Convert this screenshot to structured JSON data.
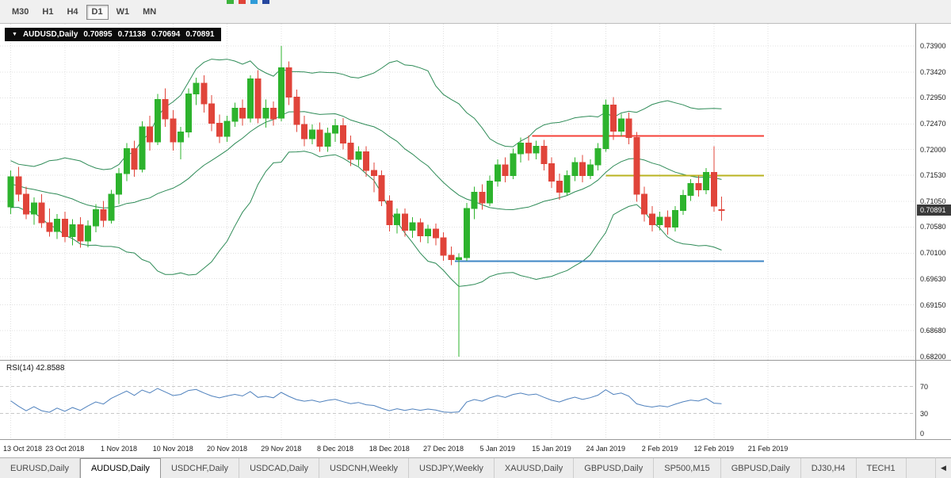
{
  "icons": {
    "collapse": "▼",
    "tabs_scroll_left": "◀"
  },
  "toolbar": {
    "timeframes": [
      {
        "label": "M30",
        "active": false
      },
      {
        "label": "H1",
        "active": false
      },
      {
        "label": "H4",
        "active": false
      },
      {
        "label": "D1",
        "active": true
      },
      {
        "label": "W1",
        "active": false
      },
      {
        "label": "MN",
        "active": false
      }
    ],
    "clipped_icon_colors": [
      "#3cb33c",
      "#e04438",
      "#2f9bd8",
      "#26479e"
    ]
  },
  "chart": {
    "title": {
      "symbol": "AUDUSD,Daily",
      "open": "0.70895",
      "high": "0.71138",
      "low": "0.70694",
      "close": "0.70891"
    },
    "current_price": "0.70891",
    "price_axis_labels": [
      "0.73900",
      "0.73420",
      "0.72950",
      "0.72470",
      "0.72000",
      "0.71530",
      "0.71050",
      "0.70580",
      "0.70100",
      "0.69630",
      "0.69150",
      "0.68680",
      "0.68200"
    ],
    "colors": {
      "up": "#2db32d",
      "down": "#e0443a",
      "band": "#2e8b57",
      "grid": "#e0e0e0",
      "rsi_line": "#4f81bd",
      "rsi_level": "#c8c8c8",
      "badge_bg": "#3a3a3a"
    },
    "hlines": [
      {
        "id": "resistance-line",
        "color": "#f54238",
        "price": 0.7225,
        "from_bar": 67.5,
        "to_bar": 97.5
      },
      {
        "id": "mid-level-line",
        "color": "#b9b320",
        "price": 0.7152,
        "from_bar": 77.0,
        "to_bar": 97.5
      },
      {
        "id": "support-line",
        "color": "#3e86c4",
        "price": 0.6995,
        "from_bar": 57.5,
        "to_bar": 97.5
      }
    ]
  },
  "rsi": {
    "label": "RSI(14) 42.8588",
    "period": 14,
    "current": 42.8588,
    "levels": [
      70,
      30
    ],
    "axis_labels": [
      "70",
      "30",
      "0"
    ]
  },
  "date_axis": [
    "13 Oct 2018",
    "23 Oct 2018",
    "1 Nov 2018",
    "10 Nov 2018",
    "20 Nov 2018",
    "29 Nov 2018",
    "8 Dec 2018",
    "18 Dec 2018",
    "27 Dec 2018",
    "5 Jan 2019",
    "15 Jan 2019",
    "24 Jan 2019",
    "2 Feb 2019",
    "12 Feb 2019",
    "21 Feb 2019"
  ],
  "tabs": [
    {
      "label": "EURUSD,Daily",
      "active": false
    },
    {
      "label": "AUDUSD,Daily",
      "active": true
    },
    {
      "label": "USDCHF,Daily",
      "active": false
    },
    {
      "label": "USDCAD,Daily",
      "active": false
    },
    {
      "label": "USDCNH,Weekly",
      "active": false
    },
    {
      "label": "USDJPY,Weekly",
      "active": false
    },
    {
      "label": "XAUUSD,Daily",
      "active": false
    },
    {
      "label": "GBPUSD,Daily",
      "active": false
    },
    {
      "label": "SP500,M15",
      "active": false
    },
    {
      "label": "GBPUSD,Daily",
      "active": false
    },
    {
      "label": "DJ30,H4",
      "active": false
    },
    {
      "label": "TECH1",
      "active": false
    }
  ],
  "chart_data": {
    "type": "candlestick",
    "symbol": "AUDUSD",
    "timeframe": "Daily",
    "title": "AUDUSD,Daily 0.70895 0.71138 0.70694 0.70891",
    "x_range": [
      "13 Oct 2018",
      "21 Feb 2019"
    ],
    "y_range": [
      0.682,
      0.739
    ],
    "overlays": [
      {
        "type": "bollinger_bands",
        "period": 20,
        "deviation": 2
      }
    ],
    "indicator_pane": {
      "type": "rsi",
      "period": 14,
      "value": 42.8588,
      "levels": [
        70,
        30
      ]
    },
    "candles": [
      [
        0.7095,
        0.7162,
        0.7082,
        0.715
      ],
      [
        0.715,
        0.7168,
        0.7105,
        0.7118
      ],
      [
        0.7118,
        0.7132,
        0.7072,
        0.7082
      ],
      [
        0.7082,
        0.7112,
        0.7062,
        0.7102
      ],
      [
        0.7102,
        0.7118,
        0.7056,
        0.7066
      ],
      [
        0.7066,
        0.7092,
        0.704,
        0.705
      ],
      [
        0.705,
        0.7082,
        0.7036,
        0.7072
      ],
      [
        0.7072,
        0.7086,
        0.703,
        0.704
      ],
      [
        0.704,
        0.7072,
        0.7024,
        0.7062
      ],
      [
        0.7062,
        0.7076,
        0.702,
        0.7032
      ],
      [
        0.7032,
        0.707,
        0.7021,
        0.706
      ],
      [
        0.706,
        0.71,
        0.7048,
        0.709
      ],
      [
        0.709,
        0.7106,
        0.7058,
        0.707
      ],
      [
        0.707,
        0.7126,
        0.7064,
        0.7118
      ],
      [
        0.7118,
        0.7166,
        0.71,
        0.7156
      ],
      [
        0.7156,
        0.7212,
        0.7142,
        0.7202
      ],
      [
        0.7202,
        0.7216,
        0.715,
        0.7164
      ],
      [
        0.7164,
        0.7252,
        0.7158,
        0.7242
      ],
      [
        0.7242,
        0.7262,
        0.7198,
        0.7214
      ],
      [
        0.7214,
        0.7302,
        0.7208,
        0.7292
      ],
      [
        0.7292,
        0.7312,
        0.7242,
        0.7256
      ],
      [
        0.7256,
        0.7272,
        0.7198,
        0.7214
      ],
      [
        0.7214,
        0.7242,
        0.7182,
        0.7232
      ],
      [
        0.7232,
        0.7312,
        0.7222,
        0.7302
      ],
      [
        0.7302,
        0.7332,
        0.7282,
        0.7322
      ],
      [
        0.7322,
        0.7336,
        0.7268,
        0.7284
      ],
      [
        0.7284,
        0.73,
        0.7234,
        0.7248
      ],
      [
        0.7248,
        0.7264,
        0.7212,
        0.7224
      ],
      [
        0.7224,
        0.7262,
        0.7214,
        0.7252
      ],
      [
        0.7252,
        0.7286,
        0.7242,
        0.7276
      ],
      [
        0.7276,
        0.7292,
        0.7244,
        0.7258
      ],
      [
        0.7258,
        0.7336,
        0.725,
        0.733
      ],
      [
        0.733,
        0.7346,
        0.7248,
        0.7258
      ],
      [
        0.7258,
        0.7292,
        0.724,
        0.7276
      ],
      [
        0.7276,
        0.7288,
        0.7244,
        0.7256
      ],
      [
        0.7258,
        0.739,
        0.7252,
        0.735
      ],
      [
        0.735,
        0.7362,
        0.7282,
        0.7296
      ],
      [
        0.7296,
        0.731,
        0.7232,
        0.7246
      ],
      [
        0.7246,
        0.7262,
        0.7206,
        0.722
      ],
      [
        0.722,
        0.7246,
        0.721,
        0.7236
      ],
      [
        0.7236,
        0.725,
        0.7196,
        0.7206
      ],
      [
        0.7206,
        0.724,
        0.7196,
        0.723
      ],
      [
        0.723,
        0.7256,
        0.7214,
        0.7244
      ],
      [
        0.7244,
        0.7258,
        0.72,
        0.7212
      ],
      [
        0.7212,
        0.7226,
        0.717,
        0.7182
      ],
      [
        0.7182,
        0.7206,
        0.717,
        0.7196
      ],
      [
        0.7196,
        0.7206,
        0.715,
        0.7162
      ],
      [
        0.7162,
        0.7176,
        0.7122,
        0.7152
      ],
      [
        0.7152,
        0.7162,
        0.7096,
        0.7106
      ],
      [
        0.7106,
        0.7116,
        0.705,
        0.7062
      ],
      [
        0.7062,
        0.7092,
        0.7046,
        0.7082
      ],
      [
        0.7082,
        0.7092,
        0.704,
        0.7052
      ],
      [
        0.7052,
        0.7076,
        0.7038,
        0.7066
      ],
      [
        0.7066,
        0.7074,
        0.703,
        0.7042
      ],
      [
        0.7042,
        0.7062,
        0.7028,
        0.7054
      ],
      [
        0.7054,
        0.7064,
        0.7024,
        0.7038
      ],
      [
        0.7038,
        0.7048,
        0.6996,
        0.7006
      ],
      [
        0.7006,
        0.7022,
        0.6988,
        0.6998
      ],
      [
        0.6998,
        0.701,
        0.682,
        0.7002
      ],
      [
        0.7002,
        0.7102,
        0.6996,
        0.7092
      ],
      [
        0.7092,
        0.7132,
        0.7072,
        0.7122
      ],
      [
        0.7122,
        0.7136,
        0.709,
        0.7102
      ],
      [
        0.7102,
        0.7152,
        0.7096,
        0.7142
      ],
      [
        0.7142,
        0.7182,
        0.7132,
        0.7172
      ],
      [
        0.7172,
        0.7186,
        0.714,
        0.7152
      ],
      [
        0.7152,
        0.7202,
        0.7146,
        0.7192
      ],
      [
        0.7192,
        0.7222,
        0.7176,
        0.7212
      ],
      [
        0.7212,
        0.7226,
        0.718,
        0.7194
      ],
      [
        0.7194,
        0.7216,
        0.7182,
        0.7206
      ],
      [
        0.7206,
        0.7218,
        0.7162,
        0.7174
      ],
      [
        0.7174,
        0.7186,
        0.713,
        0.7142
      ],
      [
        0.7142,
        0.7156,
        0.7108,
        0.7122
      ],
      [
        0.7122,
        0.7162,
        0.7116,
        0.7152
      ],
      [
        0.7152,
        0.7186,
        0.7142,
        0.7176
      ],
      [
        0.7176,
        0.719,
        0.714,
        0.7152
      ],
      [
        0.7152,
        0.7182,
        0.7146,
        0.7172
      ],
      [
        0.7172,
        0.7212,
        0.7162,
        0.7202
      ],
      [
        0.7202,
        0.7292,
        0.7196,
        0.7282
      ],
      [
        0.7282,
        0.7296,
        0.7218,
        0.7234
      ],
      [
        0.7234,
        0.7266,
        0.7224,
        0.7256
      ],
      [
        0.7256,
        0.7268,
        0.721,
        0.7222
      ],
      [
        0.7222,
        0.7232,
        0.7104,
        0.7118
      ],
      [
        0.7118,
        0.7132,
        0.7068,
        0.7082
      ],
      [
        0.7082,
        0.7096,
        0.705,
        0.7062
      ],
      [
        0.7062,
        0.7086,
        0.7052,
        0.7076
      ],
      [
        0.7076,
        0.7088,
        0.7044,
        0.7058
      ],
      [
        0.7058,
        0.7096,
        0.705,
        0.7088
      ],
      [
        0.7088,
        0.7126,
        0.708,
        0.7116
      ],
      [
        0.7116,
        0.7146,
        0.7106,
        0.7138
      ],
      [
        0.7138,
        0.7152,
        0.7114,
        0.7126
      ],
      [
        0.7126,
        0.7166,
        0.7118,
        0.7158
      ],
      [
        0.7158,
        0.7206,
        0.7086,
        0.7096
      ],
      [
        0.70895,
        0.71138,
        0.70694,
        0.70891
      ]
    ]
  }
}
